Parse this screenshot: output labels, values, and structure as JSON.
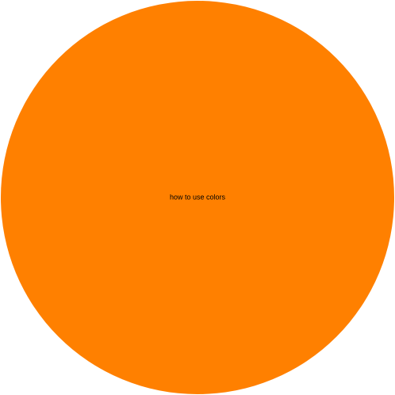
{
  "chart_data": {
    "type": "pie",
    "slices": [
      {
        "label": "how to use colors",
        "value": 100,
        "color": "#ff8000"
      }
    ],
    "title": "",
    "legend": "none"
  }
}
